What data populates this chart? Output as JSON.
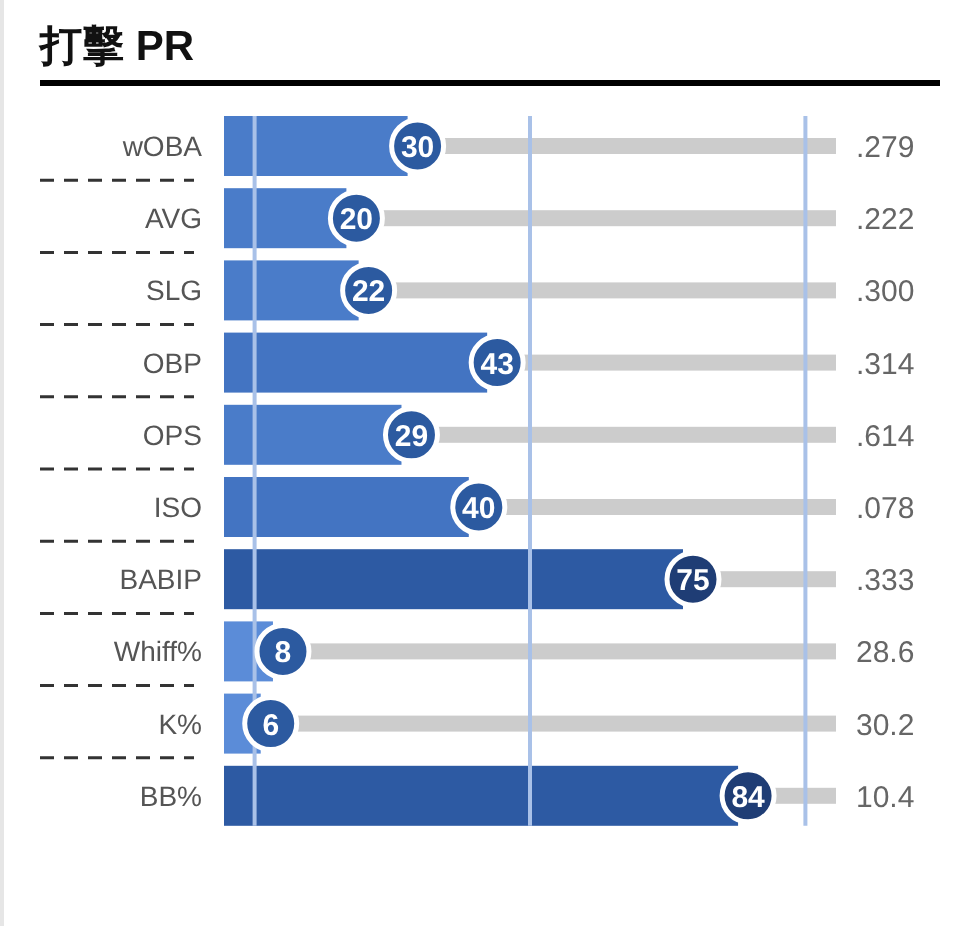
{
  "chart_data": {
    "type": "bar",
    "orientation": "horizontal",
    "title": "打擊 PR",
    "categories": [
      "wOBA",
      "AVG",
      "SLG",
      "OBP",
      "OPS",
      "ISO",
      "BABIP",
      "Whiff%",
      "K%",
      "BB%"
    ],
    "series": [
      {
        "color": "#cccccc",
        "values": [
          100,
          100,
          100,
          100,
          100,
          100,
          100,
          100,
          100,
          100
        ]
      },
      {
        "colors": [
          "#4a7cc9",
          "#4a7cc9",
          "#4a7cc9",
          "#4374c2",
          "#4a7cc9",
          "#4374c2",
          "#2d5aa3",
          "#5b8cd8",
          "#5b8cd8",
          "#2d5aa3"
        ],
        "values": [
          30,
          20,
          22,
          43,
          29,
          40,
          75,
          8,
          6,
          84
        ],
        "value_labels": [
          "30",
          "20",
          "22",
          "43",
          "29",
          "40",
          "75",
          "8",
          "6",
          "84"
        ]
      }
    ],
    "xlim": [
      0,
      100
    ],
    "tick_labels": "y",
    "ref_lines": [
      {
        "axis": "x",
        "value": 5,
        "color": "#a9c1e8"
      },
      {
        "axis": "x",
        "value": 50,
        "color": "#a9c1e8"
      },
      {
        "axis": "x",
        "value": 95,
        "color": "#a9c1e8"
      }
    ],
    "annotations": [
      ".279",
      ".222",
      ".300",
      ".314",
      ".614",
      ".078",
      ".333",
      "28.6",
      "30.2",
      "10.4"
    ]
  }
}
